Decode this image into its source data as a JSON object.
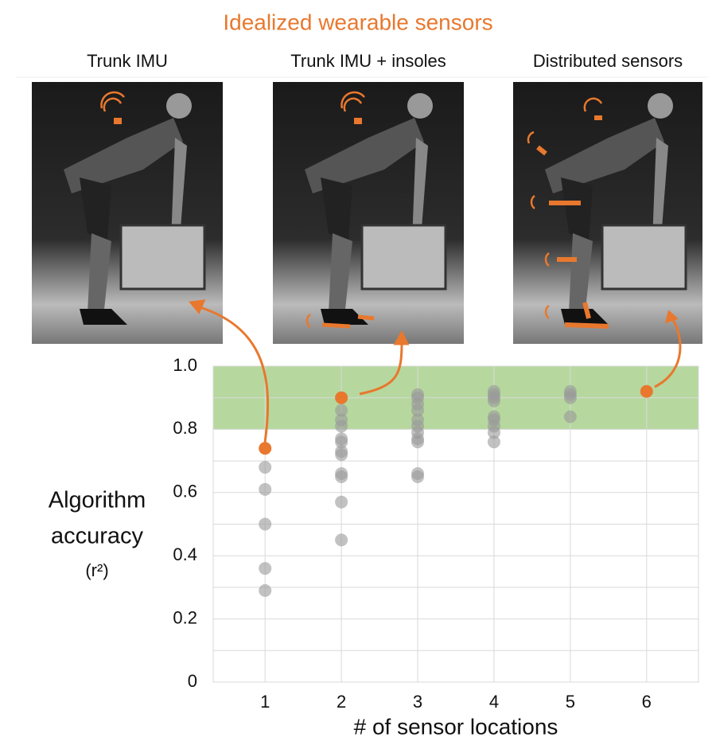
{
  "chart_data": {
    "type": "scatter",
    "title": "Idealized wearable sensors",
    "title_color": "#e8782e",
    "image_labels": [
      "Trunk IMU",
      "Trunk IMU + insoles",
      "Distributed sensors"
    ],
    "y_label": [
      "Algorithm",
      "accuracy",
      "(r²)"
    ],
    "x_label": "# of sensor locations",
    "xlim": [
      0.32,
      6.68
    ],
    "ylim": [
      0,
      1
    ],
    "xticks": [
      1,
      2,
      3,
      4,
      5,
      6
    ],
    "yticks": [
      0,
      0.2,
      0.4,
      0.6,
      0.8,
      {
        "value": 1,
        "label": "1.0"
      }
    ],
    "yminorticks": [
      0.1,
      0.3,
      0.5,
      0.7,
      0.9
    ],
    "grid": true,
    "highlight_band": {
      "range": [
        0.8,
        1
      ],
      "color": "#a9d18e"
    },
    "series": [
      {
        "color": "#9a9a9a",
        "x": [
          1,
          1,
          1,
          1,
          1,
          2,
          2,
          2,
          2,
          2,
          2,
          2,
          2,
          2,
          2,
          2,
          3,
          3,
          3,
          3,
          3,
          3,
          3,
          3,
          3,
          3,
          3,
          4,
          4,
          4,
          4,
          4,
          4,
          4,
          4,
          4,
          5,
          5,
          5,
          5
        ],
        "values": [
          0.68,
          0.61,
          0.5,
          0.36,
          0.29,
          0.86,
          0.83,
          0.81,
          0.77,
          0.76,
          0.73,
          0.72,
          0.66,
          0.65,
          0.57,
          0.45,
          0.91,
          0.9,
          0.88,
          0.86,
          0.83,
          0.81,
          0.79,
          0.77,
          0.76,
          0.66,
          0.65,
          0.92,
          0.91,
          0.9,
          0.89,
          0.84,
          0.83,
          0.81,
          0.79,
          0.76,
          0.92,
          0.91,
          0.9,
          0.84
        ]
      },
      {
        "color": "#e8782e",
        "x": [
          1,
          2,
          6
        ],
        "values": [
          0.74,
          0.9,
          0.92
        ]
      }
    ]
  }
}
